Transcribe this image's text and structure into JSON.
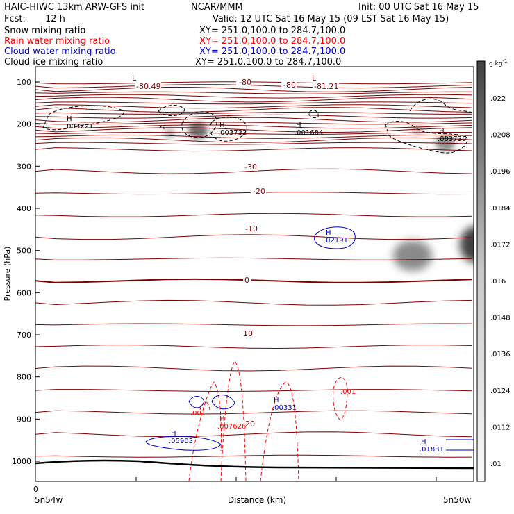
{
  "header": {
    "model": "HAIC-HIWC 13km ARW-GFS init",
    "center": "NCAR/MMM",
    "init": "Init: 00 UTC Sat 16 May 15",
    "fcst_label": "Fcst:",
    "fcst_value": "12 h",
    "valid": "Valid: 12 UTC Sat 16 May 15 (09 LST Sat 16 May 15)"
  },
  "fields": [
    {
      "label": "Snow mixing ratio",
      "xy": "XY= 251.0,100.0 to 284.7,100.0",
      "color": "#000000"
    },
    {
      "label": "Rain water mixing ratio",
      "xy": "XY= 251.0,100.0 to 284.7,100.0",
      "color": "#ff0000"
    },
    {
      "label": "Cloud water mixing ratio",
      "xy": "XY= 251.0,100.0 to 284.7,100.0",
      "color": "#0000cc"
    },
    {
      "label": "Cloud ice mixing ratio",
      "xy": "XY= 251.0,100.0 to 284.7,100.0",
      "color": "#000000"
    }
  ],
  "chart_data": {
    "type": "cross-section contour",
    "xlabel": "Distance (km)",
    "ylabel": "Pressure (hPa)",
    "x_tick_labels": [
      "0"
    ],
    "x_end_labels": [
      "5n54w",
      "5n50w"
    ],
    "y_ticks": [
      100,
      200,
      300,
      400,
      500,
      600,
      700,
      800,
      900,
      1000
    ],
    "ylim": [
      1050,
      50
    ],
    "temperature_contours": {
      "color": "#800000",
      "labels": [
        {
          "text": "L",
          "level": 100
        },
        {
          "text": "-80.49",
          "level": 110
        },
        {
          "text": "-80",
          "level": 100
        },
        {
          "text": "-80",
          "level": 106
        },
        {
          "text": "L",
          "level": 96
        },
        {
          "text": "-81.21",
          "level": 109
        },
        {
          "text": "-30",
          "level": 284
        },
        {
          "text": "-20",
          "level": 334
        },
        {
          "text": "-10",
          "level": 452
        },
        {
          "text": "0",
          "level": 567
        },
        {
          "text": "10",
          "level": 712
        },
        {
          "text": "20",
          "level": 925
        }
      ]
    },
    "snow_maxima": [
      {
        "label": "H",
        "value": ".003221",
        "level": 206
      },
      {
        "label": "H",
        "value": ".003732",
        "level": 218
      },
      {
        "label": "H",
        "value": ".001684",
        "level": 218
      },
      {
        "label": "H",
        "value": ".003736",
        "level": 232
      }
    ],
    "rain_maxima": [
      {
        "label": "",
        "value": ".001",
        "level": 894
      },
      {
        "label": "H",
        "value": ".007626",
        "level": 917
      },
      {
        "label": "",
        "value": ".001",
        "level": 853
      }
    ],
    "cloud_water_maxima": [
      {
        "label": "H",
        "value": ".02191",
        "level": 475
      },
      {
        "label": "H",
        "value": ".00331",
        "level": 888
      },
      {
        "label": "H",
        "value": ".05903",
        "level": 955
      },
      {
        "label": "H",
        "value": ".01831",
        "level": 978
      }
    ],
    "colorbar": {
      "unit": "g kg",
      "unit_exp": "-1",
      "ticks": [
        ".022",
        ".0208",
        ".0196",
        ".0184",
        ".0172",
        ".016",
        ".0148",
        ".0136",
        ".0124",
        ".0112",
        ".01"
      ]
    }
  }
}
